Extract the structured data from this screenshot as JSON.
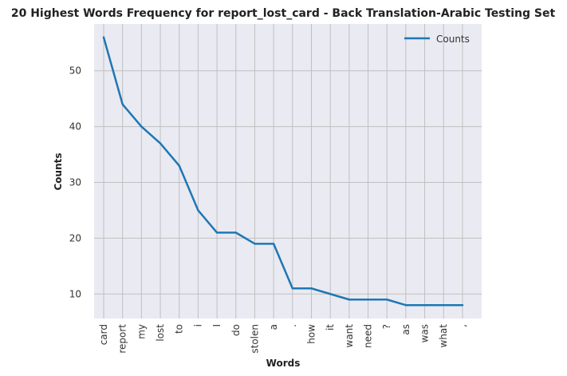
{
  "chart_data": {
    "type": "line",
    "title": "20 Highest Words Frequency for report_lost_card - Back Translation-Arabic Testing Set",
    "xlabel": "Words",
    "ylabel": "Counts",
    "categories": [
      "card",
      "report",
      "my",
      "lost",
      "to",
      "i",
      "I",
      "do",
      "stolen",
      "a",
      ".",
      "how",
      "it",
      "want",
      "need",
      "?",
      "as",
      "was",
      "what",
      ","
    ],
    "series": [
      {
        "name": "Counts",
        "color": "#1f77b4",
        "values": [
          56,
          44,
          40,
          37,
          33,
          25,
          21,
          21,
          19,
          19,
          11,
          11,
          10,
          9,
          9,
          9,
          8,
          8,
          8,
          8
        ]
      }
    ],
    "ylim": [
      5.6,
      58.4
    ],
    "yticks": [
      10,
      20,
      30,
      40,
      50
    ],
    "grid": true,
    "legend": "top-right",
    "background": "#eaeaf2",
    "gridColor": "#c0c0c0"
  }
}
